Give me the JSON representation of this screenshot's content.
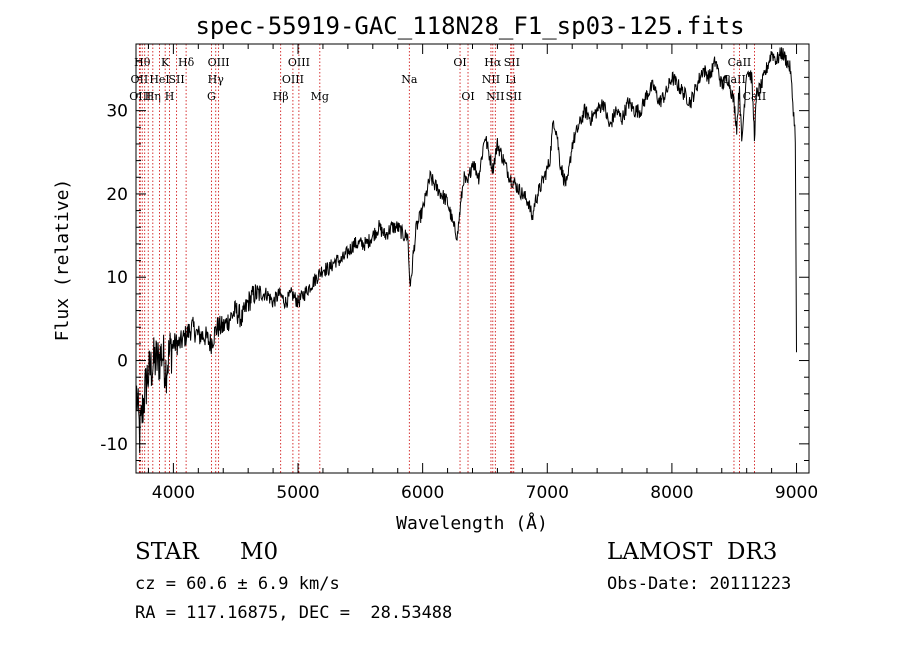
{
  "chart_data": {
    "type": "line",
    "title": "spec-55919-GAC_118N28_F1_sp03-125.fits",
    "xlabel": "Wavelength (Å)",
    "ylabel": "Flux (relative)",
    "xlim": [
      3700,
      9100
    ],
    "ylim": [
      -13.5,
      38
    ],
    "xticks": [
      4000,
      5000,
      6000,
      7000,
      8000,
      9000
    ],
    "yticks": [
      -10,
      0,
      10,
      20,
      30
    ],
    "grid": false,
    "series": [
      {
        "name": "flux",
        "x": [
          3705,
          3730,
          3760,
          3790,
          3820,
          3850,
          3880,
          3910,
          3940,
          3970,
          4000,
          4050,
          4100,
          4150,
          4200,
          4250,
          4300,
          4350,
          4400,
          4450,
          4500,
          4550,
          4600,
          4650,
          4700,
          4750,
          4800,
          4850,
          4900,
          4950,
          5000,
          5050,
          5100,
          5150,
          5200,
          5250,
          5300,
          5350,
          5400,
          5450,
          5500,
          5550,
          5600,
          5650,
          5700,
          5750,
          5800,
          5850,
          5880,
          5895,
          5905,
          5920,
          5950,
          6000,
          6030,
          6060,
          6100,
          6150,
          6200,
          6250,
          6280,
          6300,
          6330,
          6360,
          6400,
          6450,
          6500,
          6530,
          6563,
          6600,
          6650,
          6700,
          6750,
          6800,
          6850,
          6880,
          6900,
          6950,
          7000,
          7020,
          7050,
          7080,
          7100,
          7130,
          7160,
          7200,
          7250,
          7300,
          7350,
          7400,
          7450,
          7500,
          7550,
          7600,
          7650,
          7700,
          7750,
          7800,
          7850,
          7900,
          7950,
          8000,
          8050,
          8100,
          8150,
          8200,
          8250,
          8300,
          8350,
          8400,
          8450,
          8498,
          8520,
          8542,
          8560,
          8600,
          8640,
          8662,
          8680,
          8720,
          8760,
          8800,
          8840,
          8880,
          8920,
          8950,
          8970,
          8990,
          9000
        ],
        "values": [
          -4,
          -9,
          -5,
          -2,
          -1,
          0,
          0,
          1,
          -1,
          1,
          2,
          2,
          3,
          4,
          3,
          3,
          2,
          4,
          4,
          5,
          6,
          5,
          7,
          8,
          8,
          8,
          7,
          8,
          7,
          8,
          7,
          8,
          9,
          10,
          11,
          11,
          12,
          12,
          13,
          14,
          14,
          14,
          15,
          16,
          15,
          16,
          16,
          15,
          15,
          10,
          9,
          12,
          16,
          18,
          20,
          22,
          21,
          20,
          19,
          16,
          15,
          18,
          22,
          21,
          24,
          22,
          27,
          25,
          23,
          26,
          24,
          22,
          21,
          20,
          19,
          17,
          19,
          21,
          23,
          24,
          29,
          27,
          24,
          22,
          21,
          26,
          28,
          30,
          29,
          30,
          31,
          28,
          30,
          29,
          31,
          30,
          30,
          32,
          33,
          31,
          32,
          34,
          33,
          32,
          31,
          33,
          35,
          34,
          36,
          33,
          34,
          31,
          28,
          33,
          26,
          35,
          34,
          27,
          32,
          33,
          35,
          37,
          36,
          37,
          36,
          35,
          31,
          27,
          1
        ]
      }
    ],
    "line_markers": [
      {
        "w": 3750,
        "row": 1,
        "label": "Hθ"
      },
      {
        "w": 3727,
        "row": 2,
        "label": "OII"
      },
      {
        "w": 3734,
        "row": 3,
        "label": "OIII"
      },
      {
        "w": 3770,
        "row": 2,
        "label": ""
      },
      {
        "w": 3798,
        "row": 1,
        "label": ""
      },
      {
        "w": 3835,
        "row": 3,
        "label": "Hη"
      },
      {
        "w": 3889,
        "row": 2,
        "label": "HeI"
      },
      {
        "w": 3934,
        "row": 1,
        "label": "K"
      },
      {
        "w": 3969,
        "row": 3,
        "label": "H"
      },
      {
        "w": 4026,
        "row": 2,
        "label": "SII"
      },
      {
        "w": 4102,
        "row": 1,
        "label": "Hδ"
      },
      {
        "w": 4305,
        "row": 3,
        "label": "G"
      },
      {
        "w": 4340,
        "row": 2,
        "label": "Hγ"
      },
      {
        "w": 4363,
        "row": 1,
        "label": "OIII"
      },
      {
        "w": 4861,
        "row": 3,
        "label": "Hβ"
      },
      {
        "w": 4959,
        "row": 2,
        "label": "OIII"
      },
      {
        "w": 5007,
        "row": 1,
        "label": "OIII"
      },
      {
        "w": 5175,
        "row": 3,
        "label": "Mg"
      },
      {
        "w": 5893,
        "row": 2,
        "label": "Na"
      },
      {
        "w": 6300,
        "row": 1,
        "label": "OI"
      },
      {
        "w": 6364,
        "row": 3,
        "label": "OI"
      },
      {
        "w": 6548,
        "row": 2,
        "label": "NII"
      },
      {
        "w": 6563,
        "row": 1,
        "label": "Hα"
      },
      {
        "w": 6583,
        "row": 3,
        "label": "NII"
      },
      {
        "w": 6707,
        "row": 2,
        "label": "Li"
      },
      {
        "w": 6716,
        "row": 1,
        "label": "SII"
      },
      {
        "w": 6731,
        "row": 3,
        "label": "SII"
      },
      {
        "w": 8498,
        "row": 2,
        "label": "CaII"
      },
      {
        "w": 8542,
        "row": 1,
        "label": "CaII"
      },
      {
        "w": 8662,
        "row": 3,
        "label": "CaII"
      }
    ],
    "marker_color": "#cc0000",
    "line_color": "#000000"
  },
  "info": {
    "object_class": "STAR",
    "subclass": "M0",
    "survey": "LAMOST  DR3",
    "redshift": "cz = 60.6 ± 6.9 km/s",
    "obs_date": "Obs-Date: 20111223",
    "coords": "RA = 117.16875, DEC =  28.53488"
  }
}
